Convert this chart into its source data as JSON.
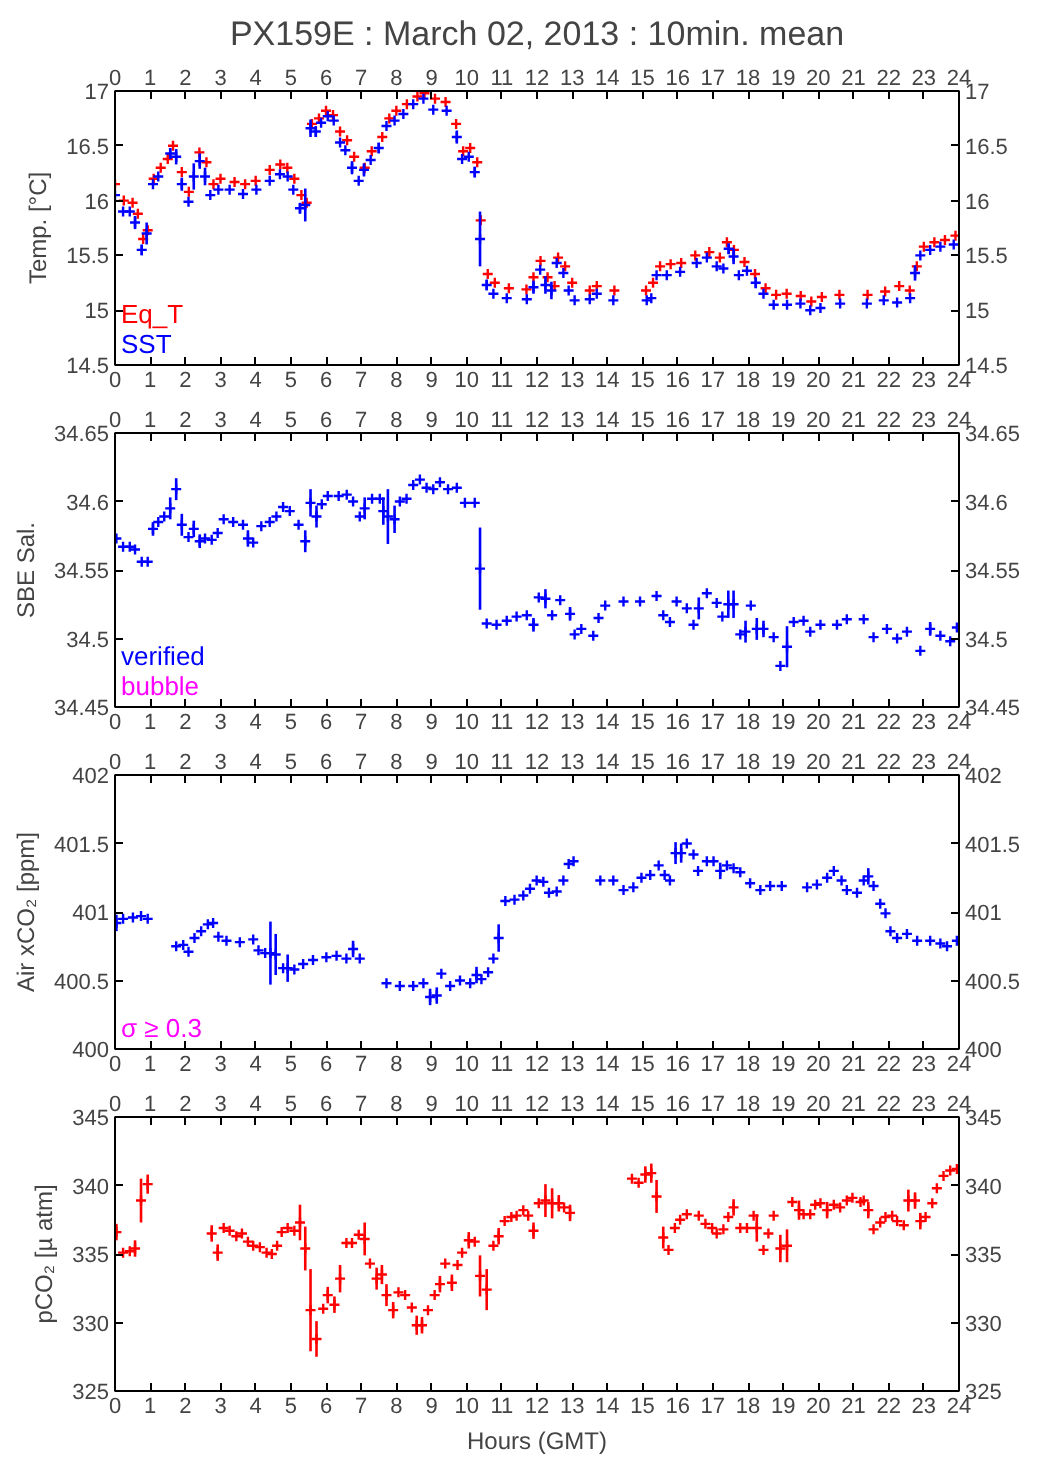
{
  "chart_data": [
    {
      "type": "scatter",
      "title": "PX159E : March 02, 2013 : 10min. mean",
      "ylabel": "Temp. [°C]",
      "marker": "cross",
      "grid": false,
      "legend": "bottom left",
      "xlim": [
        0,
        24
      ],
      "xticks": [
        0,
        1,
        2,
        3,
        4,
        5,
        6,
        7,
        8,
        9,
        10,
        11,
        12,
        13,
        14,
        15,
        16,
        17,
        18,
        19,
        20,
        21,
        22,
        23,
        24
      ],
      "x2lim": [
        0,
        24
      ],
      "x2ticks": [
        0,
        1,
        2,
        3,
        4,
        5,
        6,
        7,
        8,
        9,
        10,
        11,
        12,
        13,
        14,
        15,
        16,
        17,
        18,
        19,
        20,
        21,
        22,
        23,
        24
      ],
      "ylim": [
        14.5,
        17
      ],
      "yticks": [
        14.5,
        15,
        15.5,
        16,
        16.5,
        17
      ],
      "y2lim": [
        14.5,
        17
      ],
      "y2ticks": [
        14.5,
        15,
        15.5,
        16,
        16.5,
        17
      ],
      "series": [
        {
          "name": "Eq_T",
          "color": "#ff0000",
          "x": [
            0.0,
            0.25,
            0.5,
            0.65,
            0.8,
            0.93,
            1.1,
            1.3,
            1.5,
            1.65,
            1.9,
            2.1,
            2.4,
            2.6,
            2.8,
            3.0,
            3.4,
            3.7,
            4.0,
            4.4,
            4.7,
            4.9,
            5.1,
            5.3,
            5.45,
            5.6,
            5.8,
            6.0,
            6.2,
            6.4,
            6.6,
            6.8,
            7.1,
            7.3,
            7.6,
            7.8,
            8.0,
            8.3,
            8.6,
            8.8,
            9.1,
            9.4,
            9.7,
            9.9,
            10.1,
            10.3,
            10.4,
            10.6,
            10.8,
            11.2,
            11.7,
            11.9,
            12.1,
            12.3,
            12.5,
            12.6,
            12.8,
            13.0,
            13.5,
            13.7,
            14.2,
            15.1,
            15.3,
            15.5,
            15.8,
            16.1,
            16.5,
            16.9,
            17.2,
            17.4,
            17.6,
            17.9,
            18.2,
            18.5,
            18.8,
            19.1,
            19.5,
            19.8,
            20.1,
            20.6,
            21.4,
            21.9,
            22.3,
            22.6,
            22.8,
            23.0,
            23.3,
            23.6,
            23.9
          ],
          "values": [
            16.15,
            16.0,
            15.98,
            15.88,
            15.65,
            15.73,
            16.2,
            16.3,
            16.38,
            16.5,
            16.26,
            16.08,
            16.44,
            16.35,
            16.15,
            16.2,
            16.17,
            16.15,
            16.18,
            16.28,
            16.33,
            16.3,
            16.2,
            16.05,
            15.98,
            16.7,
            16.75,
            16.82,
            16.78,
            16.63,
            16.55,
            16.4,
            16.3,
            16.45,
            16.58,
            16.75,
            16.82,
            16.88,
            16.95,
            16.98,
            16.93,
            16.9,
            16.7,
            16.45,
            16.48,
            16.35,
            15.82,
            15.33,
            15.25,
            15.2,
            15.19,
            15.3,
            15.45,
            15.3,
            15.22,
            15.48,
            15.4,
            15.25,
            15.18,
            15.22,
            15.18,
            15.18,
            15.25,
            15.4,
            15.42,
            15.43,
            15.5,
            15.53,
            15.48,
            15.62,
            15.55,
            15.44,
            15.33,
            15.2,
            15.14,
            15.15,
            15.13,
            15.08,
            15.12,
            15.14,
            15.14,
            15.17,
            15.22,
            15.18,
            15.4,
            15.58,
            15.62,
            15.64,
            15.68
          ]
        },
        {
          "name": "SST",
          "color": "#0000ff",
          "x": [
            0.0,
            0.23,
            0.42,
            0.57,
            0.76,
            0.9,
            1.08,
            1.23,
            1.57,
            1.74,
            1.9,
            2.09,
            2.24,
            2.41,
            2.56,
            2.71,
            2.94,
            3.26,
            3.64,
            4.02,
            4.4,
            4.69,
            4.91,
            5.07,
            5.26,
            5.41,
            5.56,
            5.71,
            5.86,
            6.05,
            6.22,
            6.4,
            6.55,
            6.74,
            6.93,
            7.08,
            7.27,
            7.5,
            7.72,
            7.95,
            8.2,
            8.48,
            8.77,
            9.05,
            9.43,
            9.72,
            9.87,
            10.06,
            10.23,
            10.38,
            10.57,
            10.76,
            11.14,
            11.71,
            11.9,
            12.09,
            12.24,
            12.41,
            12.56,
            12.75,
            12.9,
            13.07,
            13.5,
            13.7,
            14.17,
            15.12,
            15.25,
            15.4,
            15.69,
            16.07,
            16.54,
            16.83,
            17.11,
            17.3,
            17.45,
            17.59,
            17.74,
            17.97,
            18.22,
            18.44,
            18.73,
            19.11,
            19.49,
            19.77,
            20.06,
            20.62,
            21.38,
            21.86,
            22.24,
            22.61,
            22.75,
            22.9,
            23.18,
            23.47,
            23.85
          ],
          "values": [
            16.05,
            15.9,
            15.9,
            15.8,
            15.55,
            15.7,
            16.15,
            16.22,
            16.43,
            16.4,
            16.15,
            15.99,
            16.22,
            16.36,
            16.22,
            16.05,
            16.1,
            16.1,
            16.06,
            16.1,
            16.18,
            16.24,
            16.22,
            16.1,
            15.93,
            15.96,
            16.66,
            16.63,
            16.71,
            16.77,
            16.73,
            16.53,
            16.46,
            16.3,
            16.18,
            16.28,
            16.37,
            16.48,
            16.68,
            16.73,
            16.79,
            16.88,
            16.93,
            16.83,
            16.82,
            16.58,
            16.38,
            16.4,
            16.26,
            15.65,
            15.23,
            15.15,
            15.11,
            15.1,
            15.21,
            15.37,
            15.23,
            15.18,
            15.43,
            15.34,
            15.18,
            15.09,
            15.1,
            15.15,
            15.09,
            15.09,
            15.11,
            15.32,
            15.32,
            15.35,
            15.43,
            15.48,
            15.4,
            15.38,
            15.56,
            15.49,
            15.32,
            15.36,
            15.25,
            15.15,
            15.05,
            15.05,
            15.06,
            15.0,
            15.02,
            15.06,
            15.06,
            15.09,
            15.07,
            15.11,
            15.34,
            15.5,
            15.55,
            15.58,
            15.6
          ],
          "errors": [
            null,
            null,
            null,
            0.06,
            0.05,
            0.1,
            null,
            null,
            0.05,
            0.07,
            0.06,
            null,
            0.12,
            0.07,
            0.08,
            null,
            null,
            null,
            null,
            null,
            null,
            null,
            null,
            null,
            0.05,
            0.15,
            0.08,
            0.05,
            null,
            null,
            null,
            null,
            null,
            0.06,
            null,
            0.06,
            null,
            0.05,
            null,
            null,
            null,
            null,
            null,
            null,
            null,
            0.06,
            null,
            null,
            0.05,
            0.25,
            0.05,
            null,
            null,
            null,
            0.06,
            null,
            0.08,
            0.08,
            null,
            null,
            null,
            null,
            null,
            null,
            null,
            null,
            null,
            null,
            null,
            null,
            null,
            null,
            null,
            null,
            0.05,
            0.07,
            null,
            null,
            0.05,
            null,
            null,
            null,
            null,
            null,
            null,
            null,
            null,
            null,
            null,
            null,
            0.07,
            null,
            null,
            null,
            null
          ]
        }
      ]
    },
    {
      "type": "scatter",
      "ylabel": "SBE Sal.",
      "marker": "cross",
      "grid": false,
      "legend": "bottom left",
      "xlim": [
        0,
        24
      ],
      "xticks": [
        0,
        1,
        2,
        3,
        4,
        5,
        6,
        7,
        8,
        9,
        10,
        11,
        12,
        13,
        14,
        15,
        16,
        17,
        18,
        19,
        20,
        21,
        22,
        23,
        24
      ],
      "x2lim": [
        0,
        24
      ],
      "x2ticks": [
        0,
        1,
        2,
        3,
        4,
        5,
        6,
        7,
        8,
        9,
        10,
        11,
        12,
        13,
        14,
        15,
        16,
        17,
        18,
        19,
        20,
        21,
        22,
        23,
        24
      ],
      "ylim": [
        34.45,
        34.65
      ],
      "yticks": [
        34.45,
        34.5,
        34.55,
        34.6,
        34.65
      ],
      "y2lim": [
        34.45,
        34.65
      ],
      "y2ticks": [
        34.45,
        34.5,
        34.55,
        34.6,
        34.65
      ],
      "series": [
        {
          "name": "verified",
          "color": "#0000ff",
          "x": [
            0.04,
            0.23,
            0.42,
            0.57,
            0.76,
            0.93,
            1.08,
            1.23,
            1.4,
            1.57,
            1.74,
            1.9,
            2.09,
            2.24,
            2.41,
            2.56,
            2.75,
            2.92,
            3.09,
            3.36,
            3.64,
            3.78,
            3.93,
            4.16,
            4.4,
            4.59,
            4.78,
            4.97,
            5.22,
            5.41,
            5.56,
            5.73,
            5.88,
            6.05,
            6.36,
            6.59,
            6.77,
            6.96,
            7.1,
            7.31,
            7.53,
            7.63,
            7.76,
            7.95,
            8.1,
            8.29,
            8.48,
            8.67,
            8.86,
            9.05,
            9.24,
            9.47,
            9.72,
            9.95,
            10.23,
            10.38,
            10.57,
            10.85,
            11.14,
            11.42,
            11.71,
            11.9,
            12.05,
            12.24,
            12.43,
            12.66,
            12.94,
            13.07,
            13.26,
            13.6,
            13.75,
            13.94,
            14.46,
            14.93,
            15.4,
            15.59,
            15.78,
            15.97,
            16.26,
            16.45,
            16.6,
            16.83,
            17.11,
            17.27,
            17.44,
            17.59,
            17.78,
            17.93,
            18.08,
            18.25,
            18.44,
            18.73,
            18.92,
            19.11,
            19.3,
            19.58,
            19.77,
            20.06,
            20.53,
            20.81,
            21.29,
            21.57,
            21.95,
            22.24,
            22.52,
            22.9,
            23.18,
            23.47,
            23.75,
            23.94
          ],
          "values": [
            34.573,
            34.567,
            34.567,
            34.565,
            34.556,
            34.556,
            34.58,
            34.585,
            34.589,
            34.595,
            34.609,
            34.583,
            34.574,
            34.58,
            34.571,
            34.573,
            34.572,
            34.577,
            34.587,
            34.585,
            34.583,
            34.573,
            34.57,
            34.582,
            34.585,
            34.589,
            34.596,
            34.593,
            34.583,
            34.571,
            34.599,
            34.589,
            34.598,
            34.604,
            34.604,
            34.605,
            34.6,
            34.589,
            34.595,
            34.602,
            34.602,
            34.593,
            34.589,
            34.587,
            34.6,
            34.602,
            34.612,
            34.616,
            34.61,
            34.609,
            34.614,
            34.609,
            34.61,
            34.599,
            34.599,
            34.551,
            34.511,
            34.51,
            34.513,
            34.516,
            34.517,
            34.51,
            34.53,
            34.529,
            34.517,
            34.528,
            34.518,
            34.503,
            34.507,
            34.502,
            34.515,
            34.524,
            34.527,
            34.527,
            34.531,
            34.517,
            34.512,
            34.527,
            34.522,
            34.51,
            34.522,
            34.533,
            34.526,
            34.516,
            34.525,
            34.525,
            34.503,
            34.505,
            34.524,
            34.507,
            34.507,
            34.501,
            34.48,
            34.494,
            34.512,
            34.513,
            34.505,
            34.51,
            34.51,
            34.514,
            34.514,
            34.501,
            34.507,
            34.5,
            34.505,
            34.491,
            34.507,
            34.502,
            34.498,
            34.508
          ],
          "errors": [
            null,
            null,
            null,
            null,
            null,
            null,
            0.005,
            null,
            null,
            0.008,
            0.008,
            0.008,
            null,
            0.006,
            0.005,
            null,
            null,
            null,
            null,
            null,
            null,
            0.006,
            null,
            null,
            null,
            null,
            null,
            null,
            null,
            0.008,
            0.01,
            0.008,
            null,
            null,
            null,
            null,
            null,
            null,
            0.008,
            null,
            null,
            0.01,
            0.02,
            0.01,
            null,
            null,
            null,
            null,
            null,
            null,
            null,
            null,
            null,
            null,
            null,
            0.03,
            null,
            null,
            null,
            null,
            null,
            0.005,
            null,
            0.007,
            null,
            null,
            0.005,
            null,
            null,
            null,
            null,
            null,
            null,
            null,
            null,
            null,
            null,
            null,
            null,
            null,
            0.008,
            null,
            null,
            null,
            0.01,
            0.01,
            null,
            0.008,
            null,
            0.008,
            0.006,
            null,
            null,
            0.015,
            null,
            null,
            null,
            null,
            null,
            null,
            null,
            null,
            null,
            null,
            null,
            null,
            0.005,
            null,
            null,
            null
          ]
        },
        {
          "name": "bubble",
          "color": "#ff00ff"
        }
      ]
    },
    {
      "type": "scatter",
      "ylabel": "Air xCO₂ [ppm]",
      "marker": "cross",
      "grid": false,
      "annotations": [
        "σ ≥ 0.3"
      ],
      "xlim": [
        0,
        24
      ],
      "xticks": [
        0,
        1,
        2,
        3,
        4,
        5,
        6,
        7,
        8,
        9,
        10,
        11,
        12,
        13,
        14,
        15,
        16,
        17,
        18,
        19,
        20,
        21,
        22,
        23,
        24
      ],
      "x2lim": [
        0,
        24
      ],
      "x2ticks": [
        0,
        1,
        2,
        3,
        4,
        5,
        6,
        7,
        8,
        9,
        10,
        11,
        12,
        13,
        14,
        15,
        16,
        17,
        18,
        19,
        20,
        21,
        22,
        23,
        24
      ],
      "ylim": [
        400,
        402
      ],
      "yticks": [
        400,
        400.5,
        401,
        401.5,
        402
      ],
      "y2lim": [
        400,
        402
      ],
      "y2ticks": [
        400,
        400.5,
        401,
        401.5,
        402
      ],
      "series": [
        {
          "color": "#0000ff",
          "x": [
            0.04,
            0.23,
            0.51,
            0.74,
            0.93,
            1.74,
            1.94,
            2.09,
            2.26,
            2.45,
            2.64,
            2.79,
            2.94,
            3.17,
            3.55,
            3.93,
            4.08,
            4.27,
            4.42,
            4.57,
            4.78,
            4.91,
            5.1,
            5.35,
            5.63,
            6.01,
            6.3,
            6.58,
            6.77,
            6.96,
            7.72,
            8.1,
            8.48,
            8.77,
            8.96,
            9.15,
            9.28,
            9.53,
            9.81,
            10.1,
            10.28,
            10.42,
            10.61,
            10.76,
            10.91,
            11.1,
            11.36,
            11.61,
            11.8,
            11.99,
            12.18,
            12.34,
            12.56,
            12.75,
            12.9,
            13.04,
            13.8,
            14.17,
            14.46,
            14.74,
            14.97,
            15.22,
            15.46,
            15.63,
            15.78,
            15.94,
            16.1,
            16.26,
            16.45,
            16.58,
            16.83,
            17.02,
            17.21,
            17.4,
            17.59,
            17.78,
            18.06,
            18.35,
            18.63,
            18.96,
            19.68,
            19.96,
            20.25,
            20.44,
            20.66,
            20.81,
            21.1,
            21.29,
            21.42,
            21.57,
            21.76,
            21.91,
            22.05,
            22.24,
            22.52,
            22.81,
            23.18,
            23.47,
            23.66,
            23.94
          ],
          "values": [
            400.92,
            400.95,
            400.96,
            400.97,
            400.95,
            400.75,
            400.76,
            400.71,
            400.81,
            400.86,
            400.91,
            400.92,
            400.82,
            400.79,
            400.78,
            400.8,
            400.72,
            400.7,
            400.7,
            400.69,
            400.59,
            400.59,
            400.58,
            400.62,
            400.65,
            400.67,
            400.68,
            400.66,
            400.73,
            400.66,
            400.48,
            400.46,
            400.46,
            400.48,
            400.38,
            400.39,
            400.55,
            400.46,
            400.5,
            400.48,
            400.54,
            400.51,
            400.56,
            400.66,
            400.81,
            401.08,
            401.09,
            401.12,
            401.17,
            401.23,
            401.22,
            401.14,
            401.15,
            401.23,
            401.35,
            401.37,
            401.23,
            401.23,
            401.16,
            401.18,
            401.25,
            401.27,
            401.34,
            401.27,
            401.23,
            401.43,
            401.43,
            401.5,
            401.42,
            401.3,
            401.37,
            401.37,
            401.3,
            401.34,
            401.32,
            401.29,
            401.21,
            401.16,
            401.19,
            401.19,
            401.18,
            401.2,
            401.25,
            401.3,
            401.23,
            401.16,
            401.14,
            401.23,
            401.26,
            401.19,
            401.06,
            400.99,
            400.86,
            400.81,
            400.84,
            400.79,
            400.79,
            400.77,
            400.75,
            400.79
          ],
          "errors": [
            0.06,
            null,
            null,
            null,
            null,
            null,
            null,
            null,
            null,
            null,
            null,
            null,
            null,
            null,
            null,
            null,
            null,
            null,
            0.23,
            0.15,
            null,
            0.1,
            null,
            null,
            null,
            null,
            null,
            null,
            0.06,
            null,
            null,
            null,
            null,
            null,
            0.06,
            0.06,
            null,
            null,
            null,
            null,
            0.06,
            null,
            null,
            null,
            0.1,
            null,
            null,
            null,
            null,
            null,
            null,
            null,
            null,
            null,
            null,
            null,
            null,
            null,
            null,
            null,
            null,
            null,
            null,
            null,
            null,
            0.08,
            0.07,
            null,
            null,
            null,
            null,
            null,
            0.06,
            null,
            null,
            null,
            null,
            null,
            null,
            null,
            null,
            null,
            null,
            null,
            null,
            null,
            null,
            null,
            0.06,
            null,
            null,
            null,
            null,
            null,
            null,
            null,
            null,
            null,
            null,
            null
          ]
        }
      ]
    },
    {
      "type": "scatter",
      "ylabel": "pCO₂ [µ atm]",
      "xlabel": "Hours (GMT)",
      "marker": "cross",
      "grid": false,
      "xlim": [
        0,
        24
      ],
      "xticks": [
        0,
        1,
        2,
        3,
        4,
        5,
        6,
        7,
        8,
        9,
        10,
        11,
        12,
        13,
        14,
        15,
        16,
        17,
        18,
        19,
        20,
        21,
        22,
        23,
        24
      ],
      "x2lim": [
        0,
        24
      ],
      "x2ticks": [
        0,
        1,
        2,
        3,
        4,
        5,
        6,
        7,
        8,
        9,
        10,
        11,
        12,
        13,
        14,
        15,
        16,
        17,
        18,
        19,
        20,
        21,
        22,
        23,
        24
      ],
      "ylim": [
        325,
        345
      ],
      "yticks": [
        325,
        330,
        335,
        340,
        345
      ],
      "y2lim": [
        325,
        345
      ],
      "y2ticks": [
        325,
        330,
        335,
        340,
        345
      ],
      "series": [
        {
          "color": "#ff0000",
          "x": [
            0.04,
            0.23,
            0.42,
            0.57,
            0.74,
            0.93,
            2.75,
            2.92,
            3.09,
            3.26,
            3.45,
            3.61,
            3.78,
            3.93,
            4.12,
            4.31,
            4.46,
            4.61,
            4.74,
            4.91,
            5.1,
            5.26,
            5.41,
            5.56,
            5.73,
            5.92,
            6.05,
            6.24,
            6.4,
            6.58,
            6.74,
            6.93,
            7.1,
            7.25,
            7.44,
            7.59,
            7.72,
            7.91,
            8.06,
            8.25,
            8.44,
            8.58,
            8.73,
            8.9,
            9.09,
            9.24,
            9.39,
            9.58,
            9.74,
            9.87,
            10.06,
            10.23,
            10.38,
            10.57,
            10.76,
            10.91,
            11.08,
            11.27,
            11.42,
            11.61,
            11.75,
            11.9,
            12.05,
            12.24,
            12.43,
            12.62,
            12.77,
            12.94,
            14.7,
            14.89,
            15.08,
            15.25,
            15.4,
            15.59,
            15.74,
            15.92,
            16.07,
            16.26,
            16.6,
            16.79,
            16.98,
            17.11,
            17.3,
            17.44,
            17.59,
            17.78,
            17.97,
            18.16,
            18.25,
            18.44,
            18.58,
            18.73,
            18.92,
            19.11,
            19.26,
            19.45,
            19.58,
            19.77,
            19.91,
            20.06,
            20.25,
            20.44,
            20.62,
            20.81,
            20.97,
            21.2,
            21.29,
            21.42,
            21.57,
            21.76,
            21.91,
            22.1,
            22.24,
            22.43,
            22.56,
            22.75,
            22.9,
            23.05,
            23.24,
            23.37,
            23.56,
            23.75,
            23.94
          ],
          "values": [
            336.6,
            335.1,
            335.2,
            335.4,
            338.9,
            340.1,
            336.5,
            335.1,
            336.9,
            336.7,
            336.3,
            336.5,
            335.9,
            335.6,
            335.5,
            335.1,
            335.0,
            335.6,
            336.6,
            336.9,
            336.7,
            337.3,
            335.4,
            330.9,
            328.8,
            331,
            332,
            331.3,
            333.2,
            335.8,
            335.8,
            336.4,
            336.1,
            334.3,
            333.2,
            333.5,
            332,
            330.9,
            332.2,
            332,
            331.1,
            329.8,
            329.8,
            330.9,
            332,
            332.8,
            334.3,
            332.9,
            334.2,
            335.1,
            336,
            335.9,
            333.4,
            332.4,
            335.6,
            336.3,
            337.4,
            337.7,
            337.8,
            338.2,
            337.8,
            336.7,
            338.7,
            338.9,
            338.7,
            338.7,
            338.4,
            338,
            340.5,
            340.2,
            340.8,
            340.9,
            339.2,
            336.2,
            335.3,
            336.9,
            337.5,
            337.9,
            337.8,
            337.2,
            336.9,
            336.5,
            336.8,
            337.7,
            338.4,
            336.9,
            336.9,
            337.8,
            336.9,
            335.3,
            336.5,
            337.8,
            335.4,
            335.6,
            338.8,
            338.2,
            337.9,
            337.9,
            338.6,
            338.7,
            338.2,
            338.6,
            338.4,
            338.9,
            339.1,
            338.8,
            338.9,
            338.2,
            336.8,
            337.3,
            337.7,
            337.8,
            337.4,
            337.1,
            338.9,
            338.9,
            337.4,
            337.7,
            338.7,
            339.8,
            340.7,
            341.1,
            341.2
          ],
          "errors": [
            0.6,
            null,
            null,
            0.6,
            1.6,
            0.7,
            0.6,
            0.6,
            null,
            null,
            null,
            null,
            null,
            null,
            null,
            null,
            null,
            null,
            null,
            null,
            null,
            1.3,
            1.6,
            3,
            1.3,
            null,
            0.6,
            0.6,
            1,
            null,
            null,
            null,
            1.2,
            null,
            0.8,
            0.7,
            0.8,
            0.6,
            null,
            null,
            null,
            0.7,
            0.6,
            null,
            null,
            0.6,
            null,
            0.6,
            null,
            null,
            0.6,
            null,
            1.5,
            1.5,
            null,
            0.6,
            null,
            null,
            null,
            null,
            null,
            0.6,
            null,
            1.2,
            1.1,
            0.6,
            null,
            0.6,
            null,
            null,
            0.6,
            0.7,
            1.2,
            0.8,
            null,
            null,
            null,
            null,
            null,
            null,
            null,
            null,
            null,
            null,
            0.6,
            null,
            null,
            null,
            1,
            null,
            null,
            null,
            1,
            1.2,
            null,
            0.7,
            null,
            null,
            null,
            null,
            0.6,
            null,
            null,
            null,
            null,
            null,
            null,
            0.6,
            null,
            null,
            null,
            null,
            null,
            null,
            0.8,
            0.6,
            0.6,
            null,
            null,
            null,
            null,
            null,
            null
          ]
        }
      ]
    }
  ]
}
